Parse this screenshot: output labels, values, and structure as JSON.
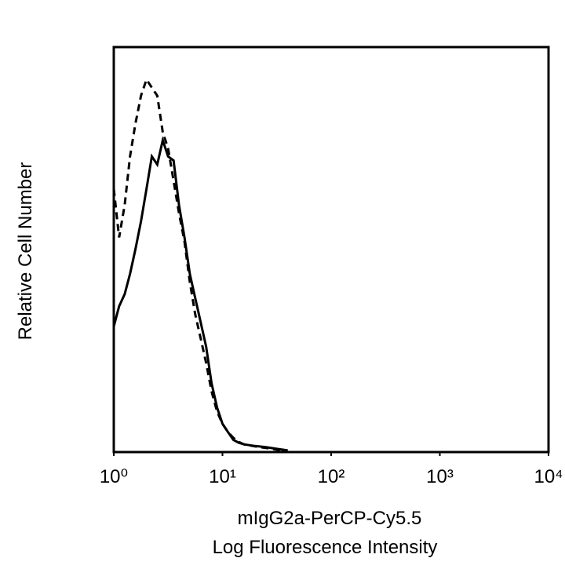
{
  "chart_data": {
    "type": "line",
    "ylabel": "Relative Cell Number",
    "xlabel": [
      "mIgG2a-PerCP-Cy5.5",
      "Log Fluorescence Intensity"
    ],
    "xscale": "log",
    "xlim": [
      1,
      10000
    ],
    "xticks": [
      {
        "value": 1,
        "label": "10⁰"
      },
      {
        "value": 10,
        "label": "10¹"
      },
      {
        "value": 100,
        "label": "10²"
      },
      {
        "value": 1000,
        "label": "10³"
      },
      {
        "value": 10000,
        "label": "10⁴"
      }
    ],
    "ylim": [
      0,
      100
    ],
    "x": [
      1,
      1.12,
      1.26,
      1.41,
      1.58,
      1.78,
      2,
      2.24,
      2.51,
      2.82,
      3.16,
      3.55,
      3.98,
      4.47,
      5.01,
      5.62,
      6.31,
      7.08,
      7.94,
      8.91,
      10,
      11.2,
      12.6,
      14.1,
      15.8,
      20,
      25.1,
      31.6,
      39.8
    ],
    "series": [
      {
        "color": "#000000",
        "dashed": false,
        "values": [
          31,
          36,
          39,
          44,
          50,
          57,
          65,
          73,
          71,
          77,
          73,
          72,
          61,
          53,
          44,
          38,
          32,
          26,
          17,
          11,
          7,
          5,
          3,
          2.3,
          1.9,
          1.5,
          1.2,
          0.8,
          0.4
        ]
      },
      {
        "color": "#000000",
        "dashed": true,
        "values": [
          65,
          53,
          61,
          73,
          81,
          88,
          92,
          90,
          88,
          79,
          75,
          67,
          59,
          52,
          42,
          34,
          28,
          22,
          15,
          10,
          7,
          5,
          3.5,
          2.5,
          1.9,
          1.4,
          1,
          0.6,
          0.2
        ]
      }
    ]
  }
}
